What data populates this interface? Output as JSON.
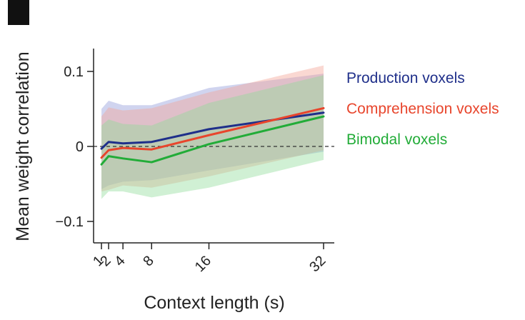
{
  "panel_marker_color": "#111111",
  "chart_data": {
    "type": "line",
    "title": "",
    "xlabel": "Context length (s)",
    "ylabel": "Mean weight correlation",
    "x": [
      1,
      2,
      4,
      8,
      16,
      32
    ],
    "x_ticks": [
      1,
      2,
      4,
      8,
      16,
      32
    ],
    "x_tick_labels": [
      "1",
      "2",
      "4",
      "8",
      "16",
      "32"
    ],
    "x_ticks_rotated": true,
    "xlim": [
      0,
      32
    ],
    "ylim": [
      -0.13,
      0.13
    ],
    "y_ticks": [
      0.1,
      0,
      -0.1
    ],
    "y_tick_labels": [
      "0.1",
      "0",
      "−0.1"
    ],
    "zero_reference_line": "dashed",
    "grid": false,
    "legend_placement": "right",
    "series": [
      {
        "name": "Production voxels",
        "color": "#1f2f8a",
        "band_color": "#8e98d8",
        "values": [
          -0.003,
          0.006,
          0.004,
          0.006,
          0.023,
          0.045
        ],
        "upper": [
          0.05,
          0.061,
          0.055,
          0.055,
          0.078,
          0.097
        ],
        "lower": [
          -0.057,
          -0.052,
          -0.047,
          -0.045,
          -0.032,
          -0.007
        ]
      },
      {
        "name": "Comprehension voxels",
        "color": "#e8452c",
        "band_color": "#f2a394",
        "values": [
          -0.015,
          -0.005,
          -0.002,
          -0.004,
          0.015,
          0.051
        ],
        "upper": [
          0.04,
          0.052,
          0.048,
          0.051,
          0.072,
          0.108
        ],
        "lower": [
          -0.06,
          -0.058,
          -0.052,
          -0.055,
          -0.04,
          -0.005
        ]
      },
      {
        "name": "Bimodal voxels",
        "color": "#22ac38",
        "band_color": "#8fdb99",
        "values": [
          -0.024,
          -0.013,
          -0.016,
          -0.021,
          0.003,
          0.04
        ],
        "upper": [
          0.028,
          0.036,
          0.03,
          0.028,
          0.058,
          0.095
        ],
        "lower": [
          -0.07,
          -0.06,
          -0.06,
          -0.068,
          -0.055,
          -0.018
        ]
      }
    ]
  }
}
